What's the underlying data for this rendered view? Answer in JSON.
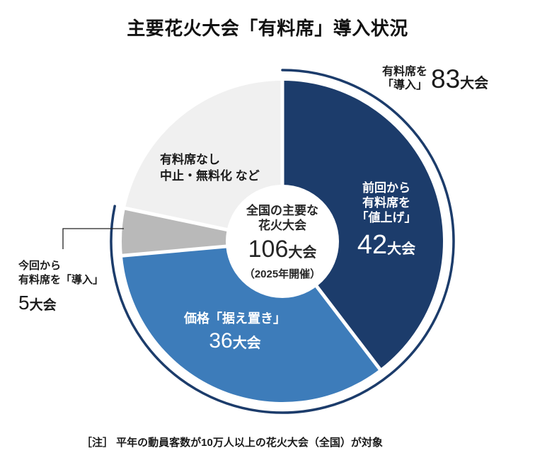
{
  "title": "主要花火大会「有料席」導入状況",
  "note": "［注］ 平年の動員客数が10万人以上の花火大会（全国）が対象",
  "colors": {
    "navy": "#1c3c6b",
    "blue": "#3d7cba",
    "gray": "#b9b9b9",
    "light_gray": "#f0f0f0",
    "separator": "#ffffff",
    "leader_line": "#222222",
    "text_dark": "#1a1a1a",
    "text_on_dark": "#ffffff"
  },
  "chart_data": {
    "type": "pie",
    "subtype": "donut",
    "title": "主要花火大会「有料席」導入状況",
    "total": 106,
    "start_angle_deg": 0,
    "direction": "clockwise",
    "legend": "none",
    "center_label": {
      "lines": [
        "全国の主要な",
        "花火大会"
      ],
      "value": "106",
      "unit": "大会",
      "subtitle": "（2025年開催）"
    },
    "segments": [
      {
        "id": "raised-price",
        "name": "前回から有料席を「値上げ」",
        "label_lines": [
          "前回から",
          "有料席を",
          "「値上げ」"
        ],
        "value": 42,
        "value_text": "42",
        "unit": "大会",
        "color": "#1c3c6b"
      },
      {
        "id": "kept-price",
        "name": "価格「据え置き」",
        "label_lines": [
          "価格「据え置き」"
        ],
        "value": 36,
        "value_text": "36",
        "unit": "大会",
        "color": "#3d7cba"
      },
      {
        "id": "newly-introduced",
        "name": "今回から有料席を「導入」",
        "label_lines": [
          "今回から",
          "有料席を「導入」"
        ],
        "value": 5,
        "value_text": "5",
        "unit": "大会",
        "color": "#b9b9b9"
      },
      {
        "id": "no-paid-seats",
        "name": "有料席なし・中止・無料化など",
        "label_lines": [
          "有料席なし",
          "中止・無料化 など"
        ],
        "value": 23,
        "color": "#f0f0f0"
      }
    ],
    "outer_arc": {
      "name": "有料席を「導入」",
      "label_lines": [
        "有料席を",
        "「導入」"
      ],
      "value": "83",
      "unit": "大会",
      "covers_value": 83,
      "color": "#1c3c6b"
    }
  }
}
